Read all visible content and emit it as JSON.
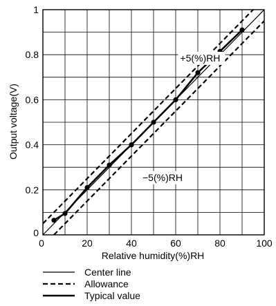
{
  "chart_data": {
    "type": "line",
    "xlabel": "Relative humidity(%)RH",
    "ylabel": "Output voltage(V)",
    "xlim": [
      0,
      100
    ],
    "ylim": [
      0,
      1
    ],
    "x_ticks": [
      "0",
      "20",
      "40",
      "60",
      "80",
      "100"
    ],
    "y_ticks": [
      "0.2",
      "0.4",
      "0.6",
      "0.8",
      "1"
    ],
    "y_origin_label": "0",
    "grid": true,
    "x_grid": [
      0,
      10,
      20,
      30,
      40,
      50,
      60,
      70,
      80,
      90,
      100
    ],
    "y_grid": [
      0,
      0.1,
      0.2,
      0.3,
      0.4,
      0.5,
      0.6,
      0.7,
      0.8,
      0.9,
      1.0
    ],
    "series": [
      {
        "name": "Center line",
        "style": "thin-solid",
        "x": [
          0,
          100
        ],
        "y": [
          0,
          1.0
        ]
      },
      {
        "name": "Allowance",
        "style": "dashed",
        "x": [
          0,
          95
        ],
        "y": [
          0.05,
          1.0
        ]
      },
      {
        "name": "Allowance",
        "style": "dashed",
        "x": [
          5,
          100
        ],
        "y": [
          0,
          0.95
        ]
      },
      {
        "name": "Typical value",
        "style": "thick-solid",
        "marker": "dot",
        "x": [
          5,
          10,
          20,
          30,
          40,
          50,
          60,
          70,
          80,
          90
        ],
        "y": [
          0.065,
          0.095,
          0.21,
          0.31,
          0.4,
          0.5,
          0.6,
          0.72,
          0.815,
          0.91
        ]
      }
    ],
    "annotations": [
      {
        "text": "+5(%)RH",
        "x": 62,
        "y": 0.77
      },
      {
        "text": "−5(%)RH",
        "x": 45,
        "y": 0.24
      }
    ],
    "legend": {
      "placement": "bottom-left",
      "items": [
        {
          "label": "Center line",
          "style": "thin-solid"
        },
        {
          "label": "Allowance",
          "style": "dashed"
        },
        {
          "label": "Typical value",
          "style": "thick-solid"
        }
      ]
    }
  }
}
